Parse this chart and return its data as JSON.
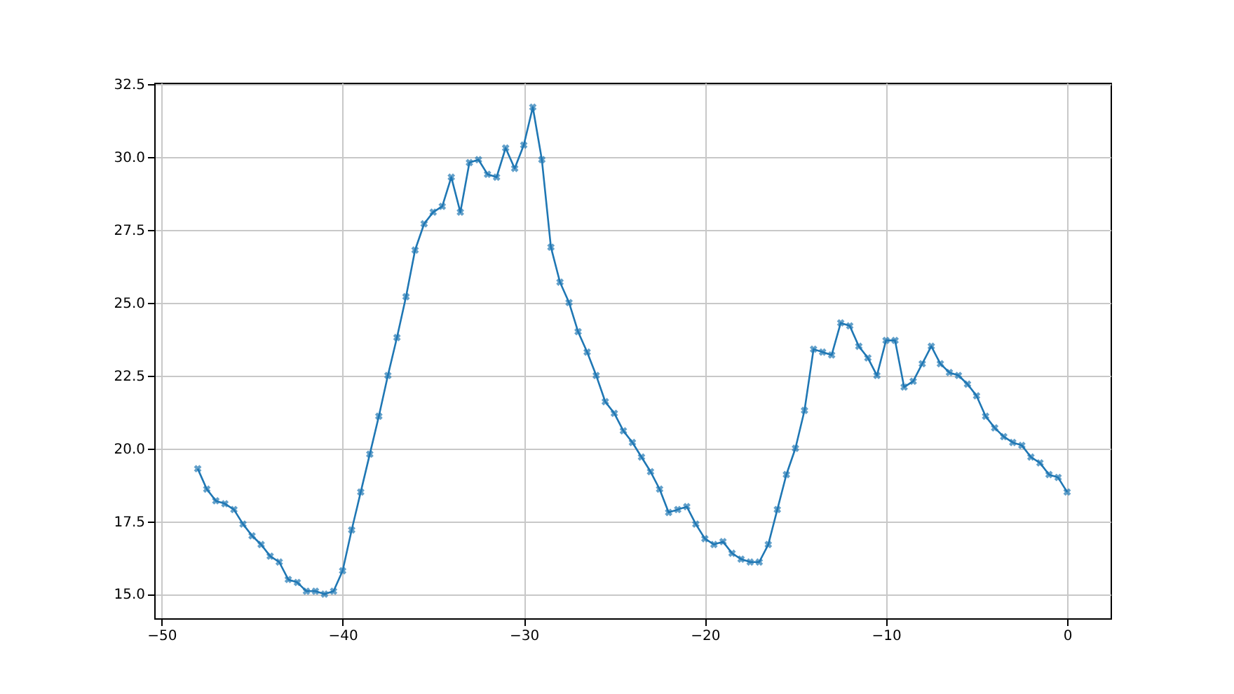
{
  "chart_data": {
    "type": "line",
    "marker": "cross",
    "line_style": "solid",
    "grid": true,
    "x": [
      -48,
      -47.5,
      -47,
      -46.5,
      -46,
      -45.5,
      -45,
      -44.5,
      -44,
      -43.5,
      -43,
      -42.5,
      -42,
      -41.5,
      -41,
      -40.5,
      -40,
      -39.5,
      -39,
      -38.5,
      -38,
      -37.5,
      -37,
      -36.5,
      -36,
      -35.5,
      -35,
      -34.5,
      -34,
      -33.5,
      -33,
      -32.5,
      -32,
      -31.5,
      -31,
      -30.5,
      -30,
      -29.5,
      -29,
      -28.5,
      -28,
      -27.5,
      -27,
      -26.5,
      -26,
      -25.5,
      -25,
      -24.5,
      -24,
      -23.5,
      -23,
      -22.5,
      -22,
      -21.5,
      -21,
      -20.5,
      -20,
      -19.5,
      -19,
      -18.5,
      -18,
      -17.5,
      -17,
      -16.5,
      -16,
      -15.5,
      -15,
      -14.5,
      -14,
      -13.5,
      -13,
      -12.5,
      -12,
      -11.5,
      -11,
      -10.5,
      -10,
      -9.5,
      -9,
      -8.5,
      -8,
      -7.5,
      -7,
      -6.5,
      -6,
      -5.5,
      -5,
      -4.5,
      -4,
      -3.5,
      -3,
      -2.5,
      -2,
      -1.5,
      -1,
      -0.5,
      0
    ],
    "series": [
      {
        "color": "#1f77b4",
        "values": [
          19.3,
          18.6,
          18.2,
          18.1,
          17.9,
          17.4,
          17.0,
          16.7,
          16.3,
          16.1,
          15.5,
          15.4,
          15.1,
          15.1,
          15.0,
          15.1,
          15.8,
          17.2,
          18.5,
          19.8,
          21.1,
          22.5,
          23.8,
          25.2,
          26.8,
          27.7,
          28.1,
          28.3,
          29.3,
          28.1,
          29.8,
          29.9,
          29.4,
          29.3,
          30.3,
          29.6,
          30.4,
          31.7,
          29.9,
          26.9,
          25.7,
          25.0,
          24.0,
          23.3,
          22.5,
          21.6,
          21.2,
          20.6,
          20.2,
          19.7,
          19.2,
          18.6,
          17.8,
          17.9,
          18.0,
          17.4,
          16.9,
          16.7,
          16.8,
          16.4,
          16.2,
          16.1,
          16.1,
          16.7,
          17.9,
          19.1,
          20.0,
          21.3,
          23.4,
          23.3,
          23.2,
          24.3,
          24.2,
          23.5,
          23.1,
          22.5,
          23.7,
          23.7,
          22.1,
          22.3,
          22.9,
          23.5,
          22.9,
          22.6,
          22.5,
          22.2,
          21.8,
          21.1,
          20.7,
          20.4,
          20.2,
          20.1,
          19.7,
          19.5,
          19.1,
          19.0,
          18.5
        ]
      }
    ],
    "xlim": [
      -50.4,
      2.4
    ],
    "xticks": [
      -50,
      -40,
      -30,
      -20,
      -10,
      0
    ],
    "ylim": [
      14.17,
      32.54
    ],
    "yticks": [
      {
        "value": 15,
        "label": "15.0"
      },
      {
        "value": 17.5,
        "label": "17.5"
      },
      {
        "value": 20,
        "label": "20.0"
      },
      {
        "value": 22.5,
        "label": "22.5"
      },
      {
        "value": 25,
        "label": "25.0"
      },
      {
        "value": 27.5,
        "label": "27.5"
      },
      {
        "value": 30,
        "label": "30.0"
      },
      {
        "value": 32.5,
        "label": "32.5"
      }
    ]
  }
}
